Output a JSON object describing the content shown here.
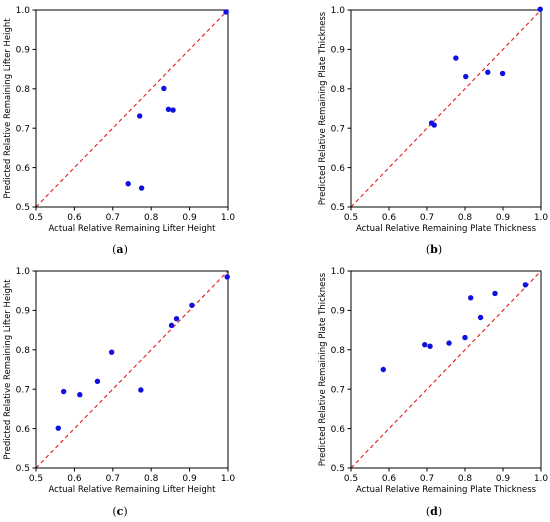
{
  "chart_data": [
    {
      "type": "scatter",
      "caption": "(a)",
      "caption_letter": "a",
      "xlabel": "Actual Relative Remaining Lifter Height",
      "ylabel": "Predicted Relative Remaining Lifter Height",
      "xlim": [
        0.5,
        1.0
      ],
      "ylim": [
        0.5,
        1.0
      ],
      "xticks": [
        "0.5",
        "0.6",
        "0.7",
        "0.8",
        "0.9",
        "1.0"
      ],
      "yticks": [
        "0.5",
        "0.6",
        "0.7",
        "0.8",
        "0.9",
        "1.0"
      ],
      "reference_line": "y = x",
      "points": [
        {
          "x": 0.995,
          "y": 0.995
        },
        {
          "x": 0.833,
          "y": 0.801
        },
        {
          "x": 0.845,
          "y": 0.748
        },
        {
          "x": 0.857,
          "y": 0.746
        },
        {
          "x": 0.77,
          "y": 0.731
        },
        {
          "x": 0.74,
          "y": 0.559
        },
        {
          "x": 0.775,
          "y": 0.548
        }
      ]
    },
    {
      "type": "scatter",
      "caption": "(b)",
      "caption_letter": "b",
      "xlabel": "Actual Relative Remaining Plate Thickness",
      "ylabel": "Predicted Relative Remaining Plate Thickness",
      "xlim": [
        0.5,
        1.0
      ],
      "ylim": [
        0.5,
        1.0
      ],
      "xticks": [
        "0.5",
        "0.6",
        "0.7",
        "0.8",
        "0.9",
        "1.0"
      ],
      "yticks": [
        "0.5",
        "0.6",
        "0.7",
        "0.8",
        "0.9",
        "1.0"
      ],
      "reference_line": "y = x",
      "points": [
        {
          "x": 0.998,
          "y": 1.002
        },
        {
          "x": 0.776,
          "y": 0.878
        },
        {
          "x": 0.802,
          "y": 0.831
        },
        {
          "x": 0.86,
          "y": 0.842
        },
        {
          "x": 0.899,
          "y": 0.839
        },
        {
          "x": 0.712,
          "y": 0.713
        },
        {
          "x": 0.719,
          "y": 0.708
        }
      ]
    },
    {
      "type": "scatter",
      "caption": "(c)",
      "caption_letter": "c",
      "xlabel": "Actual Relative Remaining Lifter Height",
      "ylabel": "Predicted Relative Remaining Lifter Height",
      "xlim": [
        0.5,
        1.0
      ],
      "ylim": [
        0.5,
        1.0
      ],
      "xticks": [
        "0.5",
        "0.6",
        "0.7",
        "0.8",
        "0.9",
        "1.0"
      ],
      "yticks": [
        "0.5",
        "0.6",
        "0.7",
        "0.8",
        "0.9",
        "1.0"
      ],
      "reference_line": "y = x",
      "points": [
        {
          "x": 0.998,
          "y": 0.985
        },
        {
          "x": 0.906,
          "y": 0.913
        },
        {
          "x": 0.866,
          "y": 0.879
        },
        {
          "x": 0.853,
          "y": 0.862
        },
        {
          "x": 0.697,
          "y": 0.794
        },
        {
          "x": 0.66,
          "y": 0.72
        },
        {
          "x": 0.773,
          "y": 0.698
        },
        {
          "x": 0.572,
          "y": 0.694
        },
        {
          "x": 0.614,
          "y": 0.686
        },
        {
          "x": 0.558,
          "y": 0.601
        }
      ]
    },
    {
      "type": "scatter",
      "caption": "(d)",
      "caption_letter": "d",
      "xlabel": "Actual Relative Remaining Plate Thickness",
      "ylabel": "Predicted Relative Remaining Plate Thickness",
      "xlim": [
        0.5,
        1.0
      ],
      "ylim": [
        0.5,
        1.0
      ],
      "xticks": [
        "0.5",
        "0.6",
        "0.7",
        "0.8",
        "0.9",
        "1.0"
      ],
      "yticks": [
        "0.5",
        "0.6",
        "0.7",
        "0.8",
        "0.9",
        "1.0"
      ],
      "reference_line": "y = x",
      "points": [
        {
          "x": 0.959,
          "y": 0.965
        },
        {
          "x": 0.879,
          "y": 0.943
        },
        {
          "x": 0.815,
          "y": 0.932
        },
        {
          "x": 0.841,
          "y": 0.882
        },
        {
          "x": 0.8,
          "y": 0.831
        },
        {
          "x": 0.758,
          "y": 0.817
        },
        {
          "x": 0.694,
          "y": 0.813
        },
        {
          "x": 0.708,
          "y": 0.809
        },
        {
          "x": 0.585,
          "y": 0.75
        }
      ]
    }
  ],
  "colors": {
    "points": "#1010e0",
    "reference_line": "#e41a1c",
    "axes": "#000000"
  }
}
